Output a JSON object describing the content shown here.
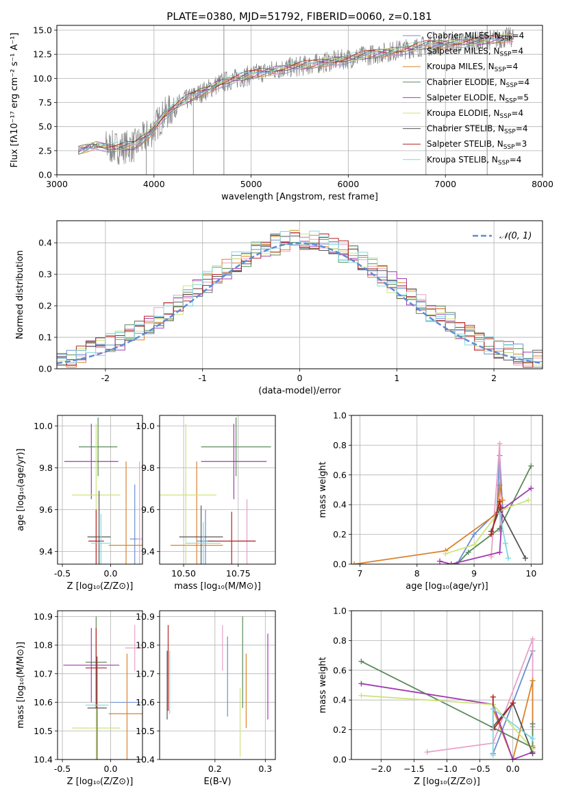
{
  "figure": {
    "title": "PLATE=0380, MJD=51792, FIBERID=0060, z=0.181",
    "colors": {
      "data": "#808080",
      "gaussian": "#5b8bd6",
      "Chabrier MILES": "#6a8ed1",
      "Salpeter MILES": "#e8a0c8",
      "Kroupa MILES": "#d9822b",
      "Chabrier ELODIE": "#5a8a5a",
      "Salpeter ELODIE": "#a03ab0",
      "Kroupa ELODIE": "#cde37a",
      "Chabrier STELIB": "#555555",
      "Salpeter STELIB": "#b22222",
      "Kroupa STELIB": "#7fd8de"
    }
  },
  "chart_data": [
    {
      "id": "spectrum",
      "type": "line",
      "xlabel": "wavelength [Angstrom, rest frame]",
      "ylabel": "Flux [fλ10⁻¹⁷ erg cm⁻² s⁻¹ A⁻¹]",
      "xlim": [
        3000,
        8000
      ],
      "ylim": [
        0,
        15.5
      ],
      "xticks": [
        3000,
        4000,
        5000,
        6000,
        7000,
        8000
      ],
      "yticks": [
        "0.0",
        "2.5",
        "5.0",
        "7.5",
        "10.0",
        "12.5",
        "15.0"
      ],
      "legend": [
        {
          "key": "Chabrier MILES",
          "label": "Chabrier MILES, N",
          "sub": "SSP",
          "tail": "=4"
        },
        {
          "key": "Salpeter MILES",
          "label": "Salpeter MILES, N",
          "sub": "SSP",
          "tail": "=4"
        },
        {
          "key": "Kroupa MILES",
          "label": "Kroupa MILES, N",
          "sub": "SSP",
          "tail": "=4"
        },
        {
          "key": "Chabrier ELODIE",
          "label": "Chabrier ELODIE, N",
          "sub": "SSP",
          "tail": "=4"
        },
        {
          "key": "Salpeter ELODIE",
          "label": "Salpeter ELODIE, N",
          "sub": "SSP",
          "tail": "=5"
        },
        {
          "key": "Kroupa ELODIE",
          "label": "Kroupa ELODIE, N",
          "sub": "SSP",
          "tail": "=4"
        },
        {
          "key": "Chabrier STELIB",
          "label": "Chabrier STELIB, N",
          "sub": "SSP",
          "tail": "=4"
        },
        {
          "key": "Salpeter STELIB",
          "label": "Salpeter STELIB, N",
          "sub": "SSP",
          "tail": "=3"
        },
        {
          "key": "Kroupa STELIB",
          "label": "Kroupa STELIB, N",
          "sub": "SSP",
          "tail": "=4"
        }
      ],
      "continuum": [
        [
          3220,
          2.5
        ],
        [
          3400,
          3.1
        ],
        [
          3600,
          2.8
        ],
        [
          3800,
          3.0
        ],
        [
          3950,
          4.2
        ],
        [
          4100,
          6.2
        ],
        [
          4300,
          7.6
        ],
        [
          4500,
          8.6
        ],
        [
          4700,
          9.6
        ],
        [
          4900,
          10.1
        ],
        [
          5100,
          10.6
        ],
        [
          5300,
          11.0
        ],
        [
          5600,
          11.4
        ],
        [
          5900,
          11.9
        ],
        [
          6200,
          12.4
        ],
        [
          6500,
          12.9
        ],
        [
          6800,
          13.4
        ],
        [
          7100,
          13.7
        ],
        [
          7400,
          13.9
        ],
        [
          7700,
          14.3
        ]
      ],
      "spikes": [
        [
          4720,
          0,
          15.5
        ],
        [
          7430,
          0,
          15.5
        ],
        [
          6800,
          0,
          13.5
        ],
        [
          3920,
          0,
          4.6
        ],
        [
          4405,
          0,
          9.0
        ]
      ]
    },
    {
      "id": "residuals",
      "type": "line",
      "xlabel": "(data-model)/error",
      "ylabel": "Normed distribution",
      "xlim": [
        -2.5,
        2.5
      ],
      "ylim": [
        0,
        0.47
      ],
      "xticks": [
        -2,
        -1,
        0,
        1,
        2
      ],
      "yticks": [
        "0.0",
        "0.1",
        "0.2",
        "0.3",
        "0.4"
      ],
      "legend_label": "𝒩(0, 1)",
      "gaussian": {
        "mu": 0,
        "sigma": 1
      },
      "bin_width": 0.1
    },
    {
      "id": "age_vs_Z",
      "type": "scatter",
      "xlabel": "Z [log₁₀(Z/Z⊙)]",
      "ylabel": "age  [log₁₀(age/yr)]",
      "xlim": [
        -0.55,
        0.33
      ],
      "ylim": [
        9.34,
        10.05
      ],
      "xticks": [
        "-0.5",
        "0.0"
      ],
      "yticks": [
        "9.4",
        "9.6",
        "9.8",
        "10.0"
      ],
      "points": [
        {
          "key": "Chabrier MILES",
          "x": 0.25,
          "y": 9.46,
          "xerr": 0.05,
          "yerr": 0.26
        },
        {
          "key": "Salpeter MILES",
          "x": 0.3,
          "y": 9.46,
          "xerr": 0.03,
          "yerr": 0.37
        },
        {
          "key": "Kroupa MILES",
          "x": 0.16,
          "y": 9.43,
          "xerr": 0.18,
          "yerr": 0.4
        },
        {
          "key": "Chabrier ELODIE",
          "x": -0.13,
          "y": 9.9,
          "xerr": 0.2,
          "yerr": 0.14
        },
        {
          "key": "Salpeter ELODIE",
          "x": -0.2,
          "y": 9.83,
          "xerr": 0.28,
          "yerr": 0.18
        },
        {
          "key": "Kroupa ELODIE",
          "x": -0.15,
          "y": 9.67,
          "xerr": 0.25,
          "yerr": 0.34
        },
        {
          "key": "Chabrier STELIB",
          "x": -0.12,
          "y": 9.47,
          "xerr": 0.12,
          "yerr": 0.22
        },
        {
          "key": "Salpeter STELIB",
          "x": -0.15,
          "y": 9.45,
          "xerr": 0.08,
          "yerr": 0.15
        },
        {
          "key": "Kroupa STELIB",
          "x": -0.1,
          "y": 9.44,
          "xerr": 0.1,
          "yerr": 0.14
        }
      ]
    },
    {
      "id": "age_vs_mass",
      "type": "scatter",
      "xlabel": "mass [log₁₀(M/M⊙)]",
      "ylabel": "",
      "xlim": [
        10.39,
        10.92
      ],
      "ylim": [
        9.34,
        10.05
      ],
      "xticks": [
        "10.50",
        "10.75"
      ],
      "yticks": [
        "9.4",
        "9.6",
        "9.8",
        "10.0"
      ],
      "points": [
        {
          "key": "Chabrier MILES",
          "x": 10.6,
          "y": 9.45,
          "xerr": 0.04,
          "yerr": 0.15
        },
        {
          "key": "Salpeter MILES",
          "x": 10.79,
          "y": 9.45,
          "xerr": 0.04,
          "yerr": 0.2
        },
        {
          "key": "Kroupa MILES",
          "x": 10.56,
          "y": 9.43,
          "xerr": 0.12,
          "yerr": 0.4
        },
        {
          "key": "Chabrier ELODIE",
          "x": 10.74,
          "y": 9.9,
          "xerr": 0.16,
          "yerr": 0.14
        },
        {
          "key": "Salpeter ELODIE",
          "x": 10.73,
          "y": 9.83,
          "xerr": 0.15,
          "yerr": 0.18
        },
        {
          "key": "Kroupa ELODIE",
          "x": 10.51,
          "y": 9.67,
          "xerr": 0.14,
          "yerr": 0.34
        },
        {
          "key": "Chabrier STELIB",
          "x": 10.58,
          "y": 9.47,
          "xerr": 0.1,
          "yerr": 0.15
        },
        {
          "key": "Salpeter STELIB",
          "x": 10.72,
          "y": 9.45,
          "xerr": 0.11,
          "yerr": 0.14
        },
        {
          "key": "Kroupa STELIB",
          "x": 10.59,
          "y": 9.44,
          "xerr": 0.08,
          "yerr": 0.1
        }
      ]
    },
    {
      "id": "mw_vs_age",
      "type": "line",
      "xlabel": "age  [log₁₀(age/yr)]",
      "ylabel": "mass weight",
      "xlim": [
        6.85,
        10.2
      ],
      "ylim": [
        0,
        1.0
      ],
      "xticks": [
        "7",
        "8",
        "9",
        "10"
      ],
      "yticks": [
        "0.0",
        "0.2",
        "0.4",
        "0.6",
        "0.8",
        "1.0"
      ],
      "series": [
        {
          "key": "Chabrier MILES",
          "x": [
            8.7,
            9.0,
            9.4,
            9.45,
            9.5
          ],
          "y": [
            0.0,
            0.2,
            0.35,
            0.73,
            0.38
          ]
        },
        {
          "key": "Salpeter MILES",
          "x": [
            9.3,
            9.45,
            9.46,
            9.48
          ],
          "y": [
            0.05,
            0.81,
            0.22,
            0.38
          ]
        },
        {
          "key": "Kroupa MILES",
          "x": [
            6.9,
            8.5,
            9.4,
            9.45,
            9.5
          ],
          "y": [
            0.0,
            0.09,
            0.34,
            0.53,
            0.43
          ]
        },
        {
          "key": "Chabrier ELODIE",
          "x": [
            8.7,
            8.9,
            9.45,
            10.0
          ],
          "y": [
            0.0,
            0.08,
            0.24,
            0.66
          ]
        },
        {
          "key": "Salpeter ELODIE",
          "x": [
            8.4,
            8.6,
            9.45,
            9.5,
            10.0
          ],
          "y": [
            0.02,
            0.0,
            0.08,
            0.37,
            0.51
          ]
        },
        {
          "key": "Kroupa ELODIE",
          "x": [
            8.5,
            9.0,
            9.45,
            9.95
          ],
          "y": [
            0.07,
            0.13,
            0.36,
            0.43
          ]
        },
        {
          "key": "Chabrier STELIB",
          "x": [
            9.3,
            9.45,
            9.9
          ],
          "y": [
            0.22,
            0.37,
            0.04
          ]
        },
        {
          "key": "Salpeter STELIB",
          "x": [
            9.3,
            9.45,
            9.47
          ],
          "y": [
            0.2,
            0.42,
            0.38
          ]
        },
        {
          "key": "Kroupa STELIB",
          "x": [
            9.45,
            9.55,
            9.6
          ],
          "y": [
            0.34,
            0.14,
            0.04
          ]
        }
      ]
    },
    {
      "id": "mass_vs_Z",
      "type": "scatter",
      "xlabel": "Z [log₁₀(Z/Z⊙)]",
      "ylabel": "mass [log₁₀(M/M⊙)]",
      "xlim": [
        -0.55,
        0.33
      ],
      "ylim": [
        10.4,
        10.92
      ],
      "xticks": [
        "-0.5",
        "0.0"
      ],
      "yticks": [
        "10.4",
        "10.5",
        "10.6",
        "10.7",
        "10.8",
        "10.9"
      ],
      "points": [
        {
          "key": "Chabrier MILES",
          "x": 0.15,
          "y": 10.6,
          "xerr": 0.15,
          "yerr": 0.0
        },
        {
          "key": "Salpeter MILES",
          "x": 0.25,
          "y": 10.79,
          "xerr": 0.1,
          "yerr": 0.08
        },
        {
          "key": "Kroupa MILES",
          "x": 0.17,
          "y": 10.56,
          "xerr": 0.19,
          "yerr": 0.21
        },
        {
          "key": "Chabrier ELODIE",
          "x": -0.15,
          "y": 10.74,
          "xerr": 0.11,
          "yerr": 0.16
        },
        {
          "key": "Salpeter ELODIE",
          "x": -0.2,
          "y": 10.73,
          "xerr": 0.29,
          "yerr": 0.13
        },
        {
          "key": "Kroupa ELODIE",
          "x": -0.15,
          "y": 10.51,
          "xerr": 0.25,
          "yerr": 0.11
        },
        {
          "key": "Chabrier STELIB",
          "x": -0.14,
          "y": 10.58,
          "xerr": 0.1,
          "yerr": 0.18
        },
        {
          "key": "Salpeter STELIB",
          "x": -0.15,
          "y": 10.72,
          "xerr": 0.11,
          "yerr": 0.14
        },
        {
          "key": "Kroupa STELIB",
          "x": -0.14,
          "y": 10.59,
          "xerr": 0.12,
          "yerr": 0.0
        }
      ]
    },
    {
      "id": "mass_vs_EBV",
      "type": "scatter",
      "xlabel": "E(B-V)",
      "ylabel": "",
      "xlim": [
        0.09,
        0.32
      ],
      "ylim": [
        10.4,
        10.92
      ],
      "xticks": [
        "0.2",
        "0.3"
      ],
      "yticks": [
        "10.4",
        "10.5",
        "10.6",
        "10.7",
        "10.8",
        "10.9"
      ],
      "points": [
        {
          "key": "Chabrier MILES",
          "x": 0.225,
          "y": 10.69,
          "xerr": 0,
          "yerr": 0.14
        },
        {
          "key": "Salpeter MILES",
          "x": 0.215,
          "y": 10.79,
          "xerr": 0,
          "yerr": 0.08
        },
        {
          "key": "Kroupa MILES",
          "x": 0.262,
          "y": 10.64,
          "xerr": 0,
          "yerr": 0.13
        },
        {
          "key": "Chabrier ELODIE",
          "x": 0.255,
          "y": 10.74,
          "xerr": 0,
          "yerr": 0.16
        },
        {
          "key": "Salpeter ELODIE",
          "x": 0.305,
          "y": 10.69,
          "xerr": 0,
          "yerr": 0.15
        },
        {
          "key": "Kroupa ELODIE",
          "x": 0.25,
          "y": 10.53,
          "xerr": 0,
          "yerr": 0.12
        },
        {
          "key": "Chabrier STELIB",
          "x": 0.105,
          "y": 10.66,
          "xerr": 0,
          "yerr": 0.12
        },
        {
          "key": "Salpeter STELIB",
          "x": 0.107,
          "y": 10.72,
          "xerr": 0,
          "yerr": 0.15
        },
        {
          "key": "Kroupa STELIB",
          "x": 0.11,
          "y": 10.67,
          "xerr": 0,
          "yerr": 0.11
        }
      ]
    },
    {
      "id": "mw_vs_Z",
      "type": "line",
      "xlabel": "Z [log₁₀(Z/Z⊙)]",
      "ylabel": "mass weight",
      "xlim": [
        -2.45,
        0.45
      ],
      "ylim": [
        0,
        1.0
      ],
      "xticks": [
        "−2.0",
        "−1.5",
        "−1.0",
        "−0.5",
        "0.0"
      ],
      "yticks": [
        "0.0",
        "0.2",
        "0.4",
        "0.6",
        "0.8",
        "1.0"
      ],
      "series": [
        {
          "key": "Chabrier MILES",
          "x": [
            -0.3,
            0.0,
            0.3
          ],
          "y": [
            0.04,
            0.38,
            0.73
          ]
        },
        {
          "key": "Salpeter MILES",
          "x": [
            -1.3,
            -0.3,
            0.3,
            0.3
          ],
          "y": [
            0.05,
            0.11,
            0.81,
            0.22
          ]
        },
        {
          "key": "Kroupa MILES",
          "x": [
            -0.3,
            0.0,
            0.3,
            0.3
          ],
          "y": [
            0.34,
            0.0,
            0.53,
            0.09
          ]
        },
        {
          "key": "Chabrier ELODIE",
          "x": [
            -2.3,
            0.3,
            0.3
          ],
          "y": [
            0.66,
            0.08,
            0.24
          ]
        },
        {
          "key": "Salpeter ELODIE",
          "x": [
            -2.3,
            -0.3,
            0.0,
            0.3
          ],
          "y": [
            0.51,
            0.37,
            0.0,
            0.05
          ]
        },
        {
          "key": "Kroupa ELODIE",
          "x": [
            -2.3,
            -0.3,
            0.3
          ],
          "y": [
            0.43,
            0.37,
            0.07
          ]
        },
        {
          "key": "Chabrier STELIB",
          "x": [
            -0.3,
            0.0,
            0.3
          ],
          "y": [
            0.22,
            0.38,
            0.04
          ]
        },
        {
          "key": "Salpeter STELIB",
          "x": [
            -0.3,
            -0.3,
            0.0
          ],
          "y": [
            0.42,
            0.2,
            0.38
          ]
        },
        {
          "key": "Kroupa STELIB",
          "x": [
            -0.3,
            -0.3,
            0.3
          ],
          "y": [
            0.03,
            0.34,
            0.14
          ]
        }
      ]
    }
  ]
}
